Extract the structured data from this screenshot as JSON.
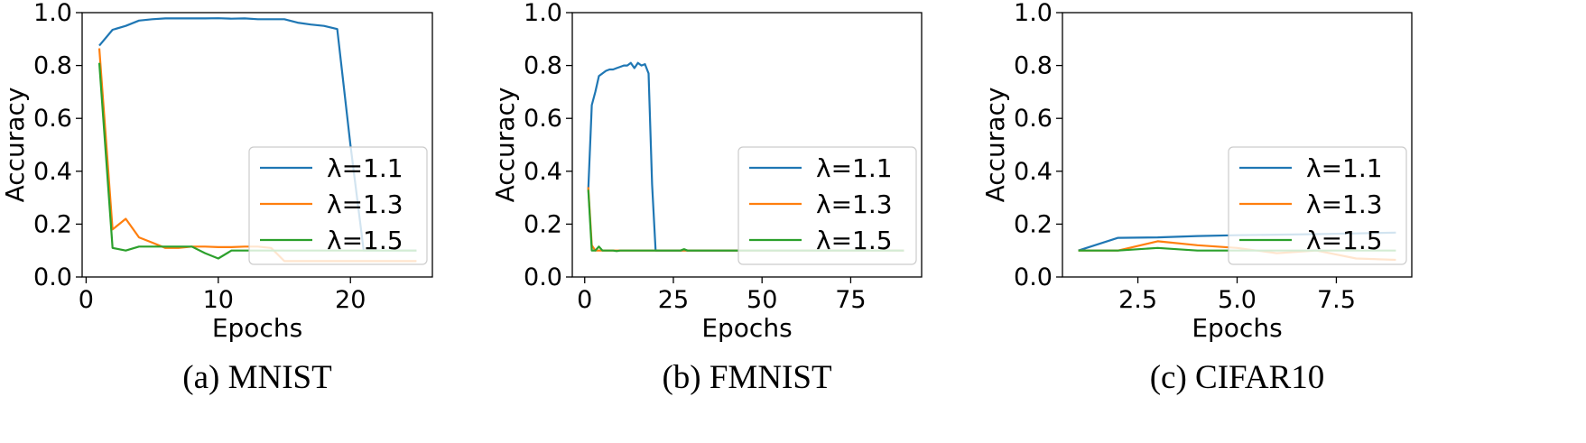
{
  "chart_data": [
    {
      "type": "line",
      "caption": "(a) MNIST",
      "xlabel": "Epochs",
      "ylabel": "Accuracy",
      "xlim": [
        -0.3,
        26.2
      ],
      "ylim": [
        0.0,
        1.0
      ],
      "xticks": [
        0,
        10,
        20
      ],
      "xtick_labels": [
        "0",
        "10",
        "20"
      ],
      "yticks": [
        0.0,
        0.2,
        0.4,
        0.6,
        0.8,
        1.0
      ],
      "ytick_labels": [
        "0.0",
        "0.2",
        "0.4",
        "0.6",
        "0.8",
        "1.0"
      ],
      "legend_position": "lower right",
      "series": [
        {
          "name": "λ=1.1",
          "color": "#1f77b4",
          "x": [
            1,
            2,
            3,
            4,
            5,
            6,
            7,
            8,
            9,
            10,
            11,
            12,
            13,
            14,
            15,
            16,
            17,
            18,
            19,
            20,
            21,
            22,
            23,
            24,
            25
          ],
          "y": [
            0.875,
            0.935,
            0.95,
            0.97,
            0.975,
            0.978,
            0.978,
            0.978,
            0.978,
            0.979,
            0.977,
            0.978,
            0.975,
            0.975,
            0.975,
            0.962,
            0.955,
            0.95,
            0.938,
            0.5,
            0.1,
            0.1,
            0.1,
            0.1,
            0.1
          ]
        },
        {
          "name": "λ=1.3",
          "color": "#ff7f0e",
          "x": [
            1,
            2,
            3,
            4,
            5,
            6,
            7,
            8,
            9,
            10,
            11,
            12,
            13,
            14,
            15,
            16,
            17,
            18,
            19,
            20,
            21,
            22,
            23,
            24,
            25
          ],
          "y": [
            0.865,
            0.18,
            0.22,
            0.15,
            0.13,
            0.11,
            0.11,
            0.115,
            0.115,
            0.113,
            0.113,
            0.115,
            0.115,
            0.11,
            0.06,
            0.06,
            0.06,
            0.06,
            0.06,
            0.06,
            0.06,
            0.06,
            0.06,
            0.06,
            0.06
          ]
        },
        {
          "name": "λ=1.5",
          "color": "#2ca02c",
          "x": [
            1,
            2,
            3,
            4,
            5,
            6,
            7,
            8,
            9,
            10,
            11,
            12,
            13,
            14,
            15,
            16,
            17,
            18,
            19,
            20,
            21,
            22,
            23,
            24,
            25
          ],
          "y": [
            0.81,
            0.11,
            0.1,
            0.115,
            0.115,
            0.115,
            0.115,
            0.115,
            0.09,
            0.07,
            0.1,
            0.1,
            0.1,
            0.1,
            0.1,
            0.1,
            0.1,
            0.1,
            0.1,
            0.1,
            0.1,
            0.1,
            0.1,
            0.1,
            0.1
          ]
        }
      ]
    },
    {
      "type": "line",
      "caption": "(b) FMNIST",
      "xlabel": "Epochs",
      "ylabel": "Accuracy",
      "xlim": [
        -3.5,
        95
      ],
      "ylim": [
        0.0,
        1.0
      ],
      "xticks": [
        0,
        25,
        50,
        75
      ],
      "xtick_labels": [
        "0",
        "25",
        "50",
        "75"
      ],
      "yticks": [
        0.0,
        0.2,
        0.4,
        0.6,
        0.8,
        1.0
      ],
      "ytick_labels": [
        "0.0",
        "0.2",
        "0.4",
        "0.6",
        "0.8",
        "1.0"
      ],
      "legend_position": "lower right",
      "series": [
        {
          "name": "λ=1.1",
          "color": "#1f77b4",
          "x": [
            1,
            2,
            3,
            4,
            5,
            6,
            7,
            8,
            9,
            10,
            11,
            12,
            13,
            14,
            15,
            16,
            17,
            18,
            19,
            20,
            21,
            30,
            40,
            50,
            60,
            70,
            80,
            90
          ],
          "y": [
            0.33,
            0.65,
            0.7,
            0.76,
            0.77,
            0.78,
            0.785,
            0.785,
            0.79,
            0.795,
            0.8,
            0.8,
            0.81,
            0.79,
            0.81,
            0.8,
            0.805,
            0.77,
            0.35,
            0.1,
            0.1,
            0.1,
            0.1,
            0.1,
            0.1,
            0.1,
            0.1,
            0.1
          ]
        },
        {
          "name": "λ=1.3",
          "color": "#ff7f0e",
          "x": [
            1,
            2,
            3,
            4,
            5,
            6,
            7,
            8,
            9,
            10,
            20,
            30,
            40,
            50,
            60,
            70,
            80,
            90
          ],
          "y": [
            0.34,
            0.12,
            0.1,
            0.1,
            0.1,
            0.1,
            0.1,
            0.1,
            0.1,
            0.1,
            0.1,
            0.1,
            0.1,
            0.1,
            0.1,
            0.1,
            0.1,
            0.1
          ]
        },
        {
          "name": "λ=1.5",
          "color": "#2ca02c",
          "x": [
            1,
            2,
            3,
            4,
            5,
            6,
            7,
            8,
            9,
            10,
            20,
            27,
            28,
            29,
            30,
            40,
            50,
            60,
            70,
            80,
            90
          ],
          "y": [
            0.33,
            0.1,
            0.1,
            0.115,
            0.1,
            0.1,
            0.1,
            0.1,
            0.098,
            0.1,
            0.1,
            0.1,
            0.105,
            0.1,
            0.1,
            0.1,
            0.1,
            0.1,
            0.1,
            0.1,
            0.1
          ]
        }
      ]
    },
    {
      "type": "line",
      "caption": "(c) CIFAR10",
      "xlabel": "Epochs",
      "ylabel": "Accuracy",
      "xlim": [
        0.6,
        9.4
      ],
      "ylim": [
        0.0,
        1.0
      ],
      "xticks": [
        2.5,
        5.0,
        7.5
      ],
      "xtick_labels": [
        "2.5",
        "5.0",
        "7.5"
      ],
      "yticks": [
        0.0,
        0.2,
        0.4,
        0.6,
        0.8,
        1.0
      ],
      "ytick_labels": [
        "0.0",
        "0.2",
        "0.4",
        "0.6",
        "0.8",
        "1.0"
      ],
      "legend_position": "lower right",
      "series": [
        {
          "name": "λ=1.1",
          "color": "#1f77b4",
          "x": [
            1,
            2,
            3,
            4,
            5,
            6,
            7,
            8,
            9
          ],
          "y": [
            0.1,
            0.148,
            0.15,
            0.155,
            0.158,
            0.16,
            0.162,
            0.165,
            0.168
          ]
        },
        {
          "name": "λ=1.3",
          "color": "#ff7f0e",
          "x": [
            1,
            2,
            3,
            4,
            5,
            6,
            7,
            8,
            9
          ],
          "y": [
            0.1,
            0.1,
            0.135,
            0.12,
            0.11,
            0.09,
            0.1,
            0.07,
            0.065
          ]
        },
        {
          "name": "λ=1.5",
          "color": "#2ca02c",
          "x": [
            1,
            2,
            3,
            4,
            5,
            6,
            7,
            8,
            9
          ],
          "y": [
            0.1,
            0.1,
            0.11,
            0.1,
            0.1,
            0.1,
            0.1,
            0.1,
            0.1
          ]
        }
      ]
    }
  ]
}
